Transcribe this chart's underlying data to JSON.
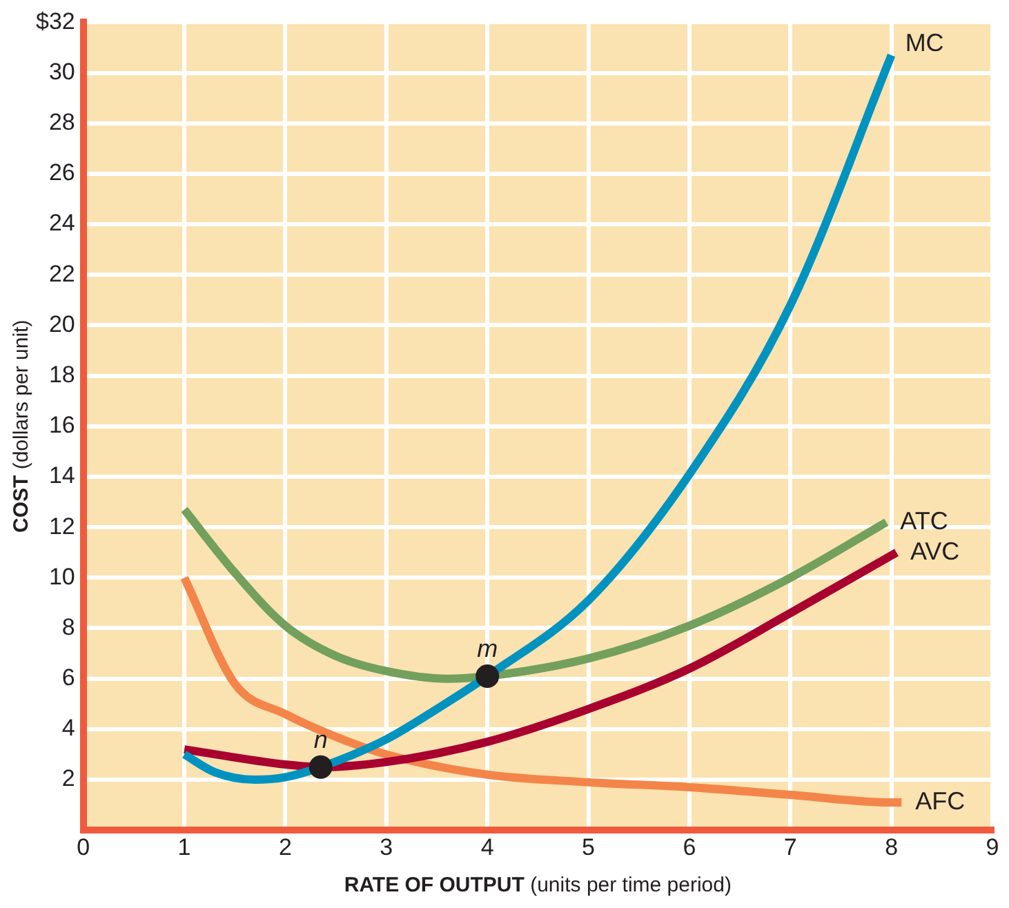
{
  "chart_data": {
    "type": "line",
    "xlabel": "RATE OF OUTPUT (units per time period)",
    "ylabel": "COST (dollars per unit)",
    "xlim": [
      0,
      9
    ],
    "ylim": [
      0,
      32
    ],
    "xticks": [
      0,
      1,
      2,
      3,
      4,
      5,
      6,
      7,
      8,
      9
    ],
    "yticks": [
      2,
      4,
      6,
      8,
      10,
      12,
      14,
      16,
      18,
      20,
      22,
      24,
      26,
      28,
      30,
      {
        "value": 32,
        "label": "$32"
      }
    ],
    "grid": true,
    "legend": false,
    "marker": "none",
    "line_style": "solid",
    "series": [
      {
        "name": "MC",
        "color": "#0093c0",
        "x": [
          1,
          1.3,
          1.7,
          2,
          2.35,
          3,
          3.5,
          4,
          5,
          6,
          7,
          8
        ],
        "values": [
          3,
          2.3,
          2,
          2.1,
          2.5,
          3.6,
          4.8,
          6.1,
          9.1,
          14.1,
          20.8,
          30.7
        ]
      },
      {
        "name": "ATC",
        "color": "#73a05d",
        "x": [
          1,
          1.5,
          2,
          2.5,
          3,
          3.6,
          4,
          5,
          6,
          7,
          7.95
        ],
        "values": [
          12.7,
          10.2,
          8.1,
          6.9,
          6.3,
          6,
          6.1,
          6.8,
          8.1,
          10,
          12.2
        ]
      },
      {
        "name": "AVC",
        "color": "#a8002f",
        "x": [
          1,
          2,
          2.35,
          3,
          4,
          5,
          6,
          7,
          8.05
        ],
        "values": [
          3.2,
          2.6,
          2.5,
          2.7,
          3.5,
          4.8,
          6.4,
          8.6,
          11
        ]
      },
      {
        "name": "AFC",
        "color": "#f4854a",
        "x": [
          1,
          1.5,
          2,
          2.5,
          3,
          4,
          5,
          6,
          7,
          8,
          8.1
        ],
        "values": [
          10,
          5.8,
          4.6,
          3.7,
          3,
          2.2,
          1.9,
          1.7,
          1.4,
          1.1,
          1.1
        ]
      },
      {
        "type": "scatter",
        "color": "#231f20",
        "marker": "circle",
        "x": [
          2.35,
          4
        ],
        "values": [
          2.5,
          6.1
        ]
      }
    ],
    "annotations": [
      {
        "text": "n",
        "x": 2.35,
        "y": 2.5
      },
      {
        "text": "m",
        "x": 4,
        "y": 6.1
      }
    ]
  }
}
